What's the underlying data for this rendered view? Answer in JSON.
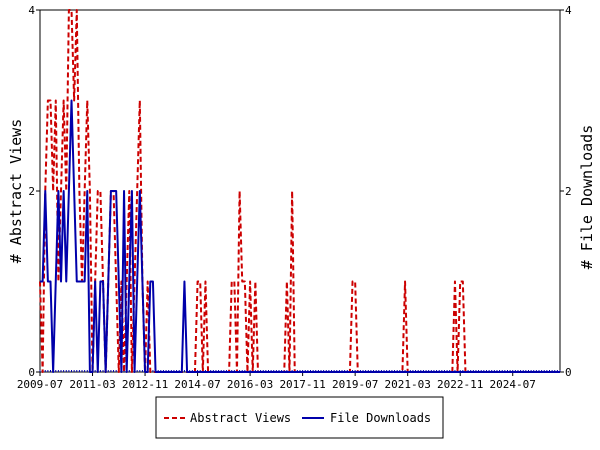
{
  "chart_data": {
    "type": "line",
    "y_left_label": "# Abstract Views",
    "y_right_label": "# File Downloads",
    "ylim": [
      0,
      4
    ],
    "yticks": [
      "0",
      "2",
      "4"
    ],
    "x_start": "2009-07",
    "x_end": "2026-01",
    "xticks": [
      "2009-07",
      "2011-03",
      "2012-11",
      "2014-07",
      "2016-03",
      "2017-11",
      "2019-07",
      "2021-03",
      "2022-11",
      "2024-07"
    ],
    "legend_position": "bottom",
    "grid": false,
    "series": [
      {
        "name": "Abstract Views",
        "color": "#cc0000",
        "style": "dashed",
        "x": [
          "2009-07",
          "2009-09",
          "2009-10",
          "2009-11",
          "2009-12",
          "2010-01",
          "2010-02",
          "2010-03",
          "2010-04",
          "2010-05",
          "2010-06",
          "2010-07",
          "2010-08",
          "2010-09",
          "2010-10",
          "2010-11",
          "2010-12",
          "2011-01",
          "2011-02",
          "2011-03",
          "2011-04",
          "2011-05",
          "2011-06",
          "2011-07",
          "2011-08",
          "2011-09",
          "2011-10",
          "2011-11",
          "2011-12",
          "2012-01",
          "2012-02",
          "2012-03",
          "2012-04",
          "2012-05",
          "2012-06",
          "2012-07",
          "2012-08",
          "2012-09",
          "2012-10",
          "2012-11",
          "2012-12",
          "2013-01",
          "2013-02",
          "2014-07",
          "2014-08",
          "2014-09",
          "2014-10",
          "2015-08",
          "2015-09",
          "2015-10",
          "2015-11",
          "2015-12",
          "2016-01",
          "2016-02",
          "2016-03",
          "2016-04",
          "2016-05",
          "2016-06",
          "2017-05",
          "2017-06",
          "2017-07",
          "2017-08",
          "2019-06",
          "2019-07",
          "2019-08",
          "2021-02",
          "2021-03",
          "2022-09",
          "2022-10",
          "2022-11",
          "2022-12",
          "2023-01"
        ],
        "values": [
          1,
          2,
          3,
          3,
          2,
          3,
          1,
          2,
          3,
          2,
          4,
          4,
          3,
          4,
          2,
          1,
          2,
          3,
          2,
          0,
          1,
          2,
          2,
          1,
          0,
          1,
          2,
          2,
          1,
          0,
          1,
          0,
          1,
          2,
          0,
          1,
          2,
          3,
          1,
          0,
          1,
          0,
          0,
          1,
          1,
          0,
          1,
          1,
          1,
          0,
          2,
          1,
          1,
          0,
          1,
          0,
          1,
          0,
          1,
          0,
          2,
          0,
          1,
          1,
          0,
          1,
          0,
          1,
          0,
          1,
          1,
          0
        ]
      },
      {
        "name": "File Downloads",
        "color": "#0000aa",
        "style": "solid",
        "x": [
          "2009-07",
          "2009-08",
          "2009-09",
          "2009-10",
          "2009-11",
          "2009-12",
          "2010-01",
          "2010-02",
          "2010-03",
          "2010-04",
          "2010-05",
          "2010-06",
          "2010-07",
          "2010-08",
          "2010-09",
          "2010-10",
          "2010-11",
          "2010-12",
          "2011-01",
          "2011-02",
          "2011-03",
          "2011-04",
          "2011-05",
          "2011-06",
          "2011-07",
          "2011-08",
          "2011-09",
          "2011-10",
          "2011-11",
          "2011-12",
          "2012-01",
          "2012-02",
          "2012-03",
          "2012-04",
          "2012-05",
          "2012-06",
          "2012-07",
          "2012-08",
          "2012-09",
          "2012-10",
          "2012-11",
          "2012-12",
          "2013-01",
          "2013-02",
          "2013-03",
          "2013-04",
          "2013-05",
          "2013-06",
          "2013-07",
          "2013-08",
          "2013-09",
          "2013-10",
          "2013-11",
          "2013-12",
          "2014-01",
          "2014-02",
          "2014-03",
          "2014-04",
          "2014-05"
        ],
        "values": [
          1,
          1,
          2,
          1,
          1,
          0,
          1,
          2,
          1,
          2,
          1,
          2,
          3,
          2,
          1,
          1,
          1,
          1,
          2,
          0,
          0,
          1,
          0,
          1,
          1,
          0,
          1,
          2,
          2,
          2,
          1,
          0,
          2,
          0,
          1,
          2,
          0,
          1,
          2,
          1,
          0,
          0,
          1,
          1,
          0,
          0,
          0,
          0,
          0,
          0,
          0,
          0,
          0,
          0,
          0,
          1,
          0,
          0,
          0
        ]
      }
    ]
  }
}
